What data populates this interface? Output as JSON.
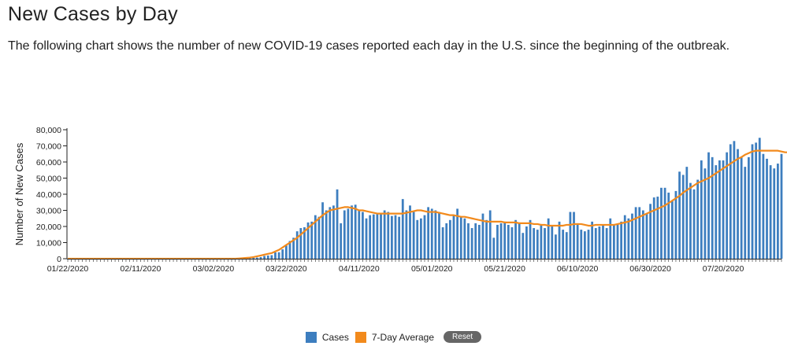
{
  "header": {
    "title": "New Cases by Day",
    "description": "The following chart shows the number of new COVID-19 cases reported each day in the U.S. since the beginning of the outbreak."
  },
  "legend": {
    "cases_label": "Cases",
    "average_label": "7-Day Average",
    "reset_label": "Reset"
  },
  "colors": {
    "bars": "#3d7ebf",
    "average": "#f28a1c",
    "axis": "#222222"
  },
  "chart_data": {
    "type": "bar",
    "title": "",
    "xlabel": "",
    "ylabel": "Number of New Cases",
    "start_date": "01/22/2020",
    "ylim": [
      0,
      80000
    ],
    "y_ticks": [
      "0",
      "10,000",
      "20,000",
      "30,000",
      "40,000",
      "50,000",
      "60,000",
      "70,000",
      "80,000"
    ],
    "x_tick_labels": [
      "01/22/2020",
      "02/11/2020",
      "03/02/2020",
      "03/22/2020",
      "04/11/2020",
      "05/01/2020",
      "05/21/2020",
      "06/10/2020",
      "06/30/2020",
      "07/20/2020"
    ],
    "series": [
      {
        "name": "Cases",
        "type": "bar",
        "values": [
          1,
          0,
          1,
          0,
          3,
          0,
          0,
          0,
          0,
          2,
          1,
          0,
          3,
          0,
          0,
          0,
          0,
          0,
          0,
          0,
          1,
          0,
          0,
          0,
          0,
          0,
          0,
          0,
          0,
          0,
          0,
          0,
          0,
          0,
          0,
          0,
          20,
          0,
          10,
          0,
          10,
          30,
          60,
          30,
          40,
          100,
          100,
          150,
          200,
          300,
          400,
          500,
          700,
          1000,
          1700,
          2000,
          2200,
          3900,
          4000,
          5800,
          8200,
          11000,
          13000,
          17000,
          19000,
          19500,
          22500,
          23000,
          27000,
          26000,
          35000,
          30000,
          32000,
          33000,
          43000,
          22000,
          30000,
          31000,
          33000,
          33500,
          30000,
          29000,
          25000,
          27000,
          27500,
          28500,
          28000,
          30000,
          29000,
          26500,
          27000,
          26000,
          37000,
          30000,
          33000,
          29000,
          24000,
          25000,
          27000,
          32000,
          31000,
          30000,
          29000,
          19500,
          22000,
          24000,
          27000,
          31000,
          26000,
          25000,
          22000,
          19000,
          22000,
          21000,
          28000,
          24000,
          30000,
          13000,
          21000,
          22000,
          23000,
          21000,
          19500,
          24000,
          22000,
          16000,
          20000,
          24000,
          19000,
          18000,
          21500,
          19000,
          25000,
          20500,
          15000,
          23000,
          18000,
          16500,
          29000,
          29000,
          22000,
          18000,
          17000,
          18000,
          23000,
          19000,
          20000,
          21000,
          19000,
          25000,
          21000,
          21500,
          23000,
          27000,
          25000,
          28000,
          32000,
          32000,
          30000,
          28000,
          34000,
          38000,
          38500,
          44000,
          44000,
          41000,
          36000,
          42000,
          54000,
          52000,
          57000,
          47000,
          43000,
          49000,
          61000,
          56000,
          66000,
          63000,
          58000,
          61000,
          61000,
          66000,
          71000,
          73000,
          68000,
          63000,
          57000,
          63000,
          71000,
          72000,
          75000,
          65000,
          62000,
          58000,
          56000,
          59000,
          65000
        ]
      },
      {
        "name": "7-Day Average",
        "type": "line",
        "values": [
          0,
          0,
          0,
          0,
          0,
          0,
          0,
          0,
          0,
          0,
          0,
          0,
          0,
          0,
          0,
          0,
          0,
          0,
          0,
          0,
          0,
          0,
          0,
          0,
          0,
          0,
          0,
          0,
          0,
          0,
          0,
          0,
          0,
          0,
          0,
          0,
          0,
          0,
          0,
          0,
          0,
          0,
          0,
          0,
          0,
          0,
          0,
          150,
          300,
          500,
          700,
          1000,
          1500,
          2000,
          2500,
          3000,
          3500,
          4500,
          5500,
          7000,
          8500,
          10000,
          11500,
          13000,
          15000,
          17000,
          19000,
          21000,
          23000,
          25000,
          27000,
          28500,
          30000,
          30500,
          31000,
          31500,
          32000,
          32000,
          31500,
          31000,
          30000,
          30000,
          29500,
          29000,
          28500,
          28000,
          28000,
          28000,
          28000,
          28000,
          28000,
          28000,
          28000,
          28500,
          29000,
          29500,
          30000,
          30000,
          29500,
          29000,
          29000,
          29000,
          28500,
          28000,
          27500,
          27000,
          27000,
          26500,
          26000,
          26000,
          25500,
          25000,
          24500,
          24000,
          23500,
          23000,
          23000,
          23000,
          23000,
          23000,
          22500,
          22500,
          22500,
          22500,
          22000,
          22000,
          22000,
          22000,
          21500,
          21500,
          21000,
          21000,
          20500,
          20500,
          20500,
          20500,
          20500,
          21000,
          21000,
          21500,
          21500,
          21500,
          21000,
          20500,
          20500,
          21000,
          21000,
          21000,
          21000,
          21000,
          21000,
          21500,
          22000,
          22500,
          23000,
          24000,
          25000,
          26000,
          27000,
          28000,
          29000,
          30000,
          31000,
          32000,
          33000,
          34500,
          36000,
          37500,
          39000,
          41000,
          42500,
          44000,
          45500,
          47000,
          48000,
          49000,
          50000,
          51500,
          53000,
          54500,
          56000,
          57500,
          59000,
          60500,
          62000,
          63000,
          64500,
          65500,
          66500,
          67000,
          67000,
          67000,
          67000,
          67000,
          67000,
          67000,
          66500,
          66000,
          66000,
          65500,
          65000
        ]
      }
    ]
  }
}
